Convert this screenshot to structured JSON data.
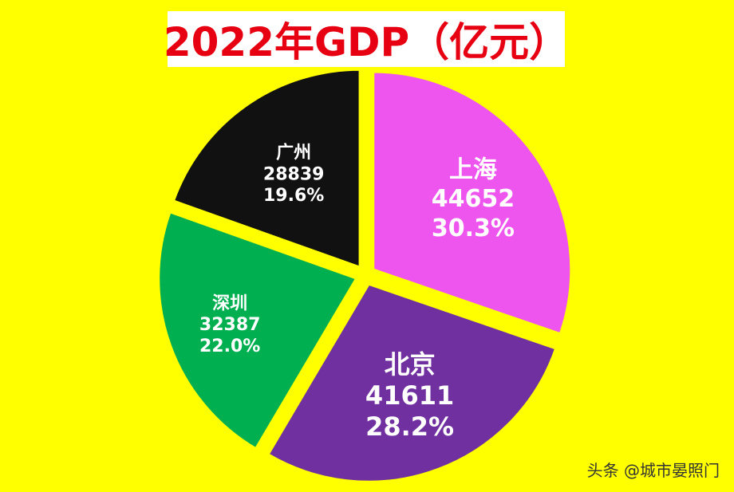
{
  "title": "2022年GDP（亿元）",
  "watermark": "头条 @城市晏照门",
  "chart_data": {
    "type": "pie",
    "title": "2022年GDP（亿元）",
    "start_angle_deg": 0,
    "direction": "clockwise",
    "exploded": true,
    "slices": [
      {
        "name": "上海",
        "value": 44652,
        "percent": "30.3%",
        "color": "#ee55ee"
      },
      {
        "name": "北京",
        "value": 41611,
        "percent": "28.2%",
        "color": "#7030a0"
      },
      {
        "name": "深圳",
        "value": 32387,
        "percent": "22.0%",
        "color": "#00b050"
      },
      {
        "name": "广州",
        "value": 28839,
        "percent": "19.6%",
        "color": "#111111"
      }
    ]
  }
}
